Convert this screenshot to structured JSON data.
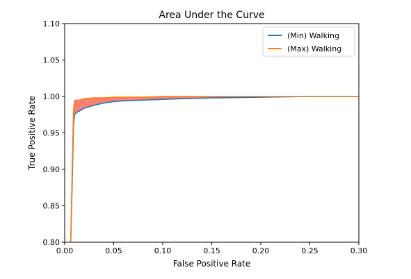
{
  "chart_data": {
    "type": "line",
    "title": "Area Under the Curve",
    "xlabel": "False Positive Rate",
    "ylabel": "True Positive Rate",
    "xlim": [
      0.0,
      0.3
    ],
    "ylim": [
      0.8,
      1.1
    ],
    "x_ticks": [
      "0.00",
      "0.05",
      "0.10",
      "0.15",
      "0.20",
      "0.25",
      "0.30"
    ],
    "y_ticks": [
      "0.80",
      "0.85",
      "0.90",
      "0.95",
      "1.00",
      "1.05",
      "1.10"
    ],
    "grid": false,
    "legend_position": "top-right",
    "fill_between": {
      "lower_series": "(Min) Walking",
      "upper_series": "(Max) Walking",
      "color": "#fa8072"
    },
    "series": [
      {
        "name": "(Min) Walking",
        "color": "#1f77b4",
        "x": [
          0.006,
          0.008,
          0.009,
          0.01,
          0.012,
          0.015,
          0.02,
          0.03,
          0.04,
          0.05,
          0.06,
          0.08,
          0.1,
          0.12,
          0.15,
          0.2,
          0.25,
          0.3
        ],
        "y": [
          0.79,
          0.9,
          0.96,
          0.975,
          0.978,
          0.98,
          0.984,
          0.988,
          0.991,
          0.993,
          0.994,
          0.995,
          0.996,
          0.997,
          0.998,
          0.999,
          1.0,
          1.0
        ]
      },
      {
        "name": "(Max) Walking",
        "color": "#ff7f0e",
        "x": [
          0.006,
          0.008,
          0.009,
          0.01,
          0.012,
          0.015,
          0.02,
          0.03,
          0.04,
          0.05,
          0.06,
          0.08,
          0.1,
          0.12,
          0.15,
          0.2,
          0.25,
          0.3
        ],
        "y": [
          0.79,
          0.92,
          0.98,
          0.994,
          0.995,
          0.995,
          0.997,
          0.998,
          0.998,
          0.999,
          0.999,
          0.999,
          1.0,
          1.0,
          1.0,
          1.0,
          1.0,
          1.0
        ]
      }
    ]
  }
}
